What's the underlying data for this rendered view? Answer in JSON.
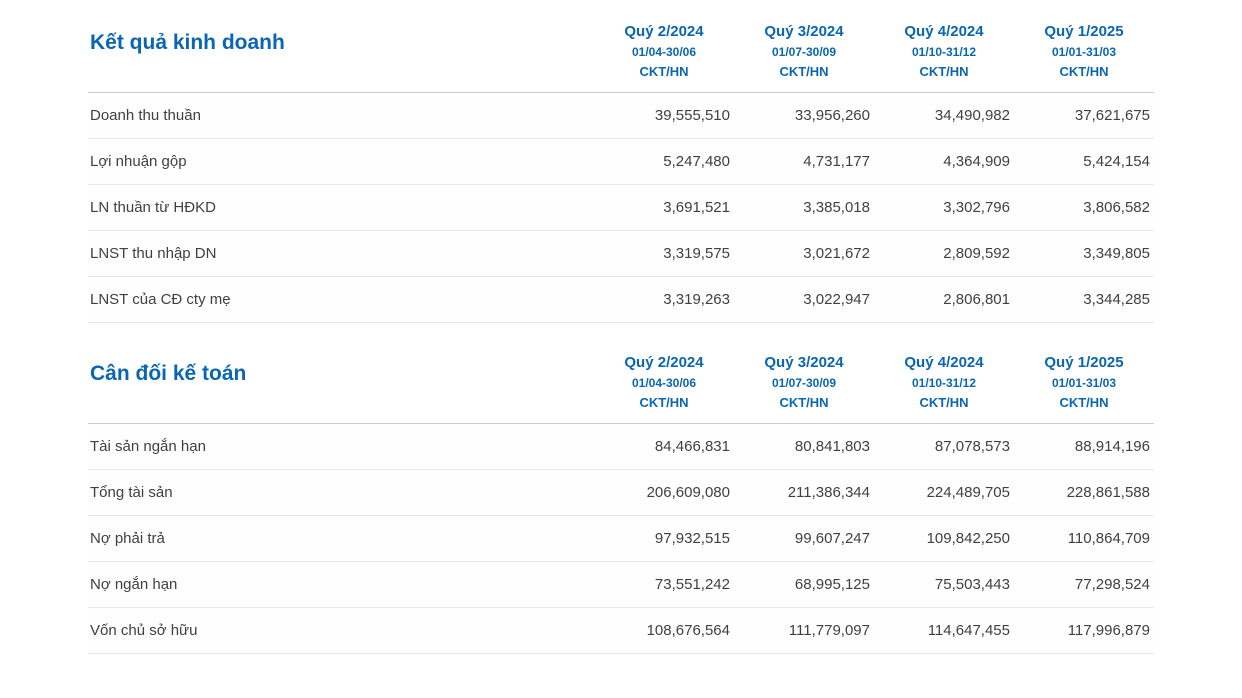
{
  "colors": {
    "accent_blue": "#0a66b2",
    "header_border": "#cccccc",
    "row_border": "#e9e9e9",
    "text": "#404040"
  },
  "sections": [
    {
      "title": "Kết quả kinh doanh",
      "columns": [
        {
          "quarter": "Quý 2/2024",
          "period": "01/04-30/06",
          "report_type": "CKT/HN"
        },
        {
          "quarter": "Quý 3/2024",
          "period": "01/07-30/09",
          "report_type": "CKT/HN"
        },
        {
          "quarter": "Quý 4/2024",
          "period": "01/10-31/12",
          "report_type": "CKT/HN"
        },
        {
          "quarter": "Quý 1/2025",
          "period": "01/01-31/03",
          "report_type": "CKT/HN"
        }
      ],
      "rows": [
        {
          "label": "Doanh thu thuần",
          "values": [
            "39,555,510",
            "33,956,260",
            "34,490,982",
            "37,621,675"
          ]
        },
        {
          "label": "Lợi nhuận gộp",
          "values": [
            "5,247,480",
            "4,731,177",
            "4,364,909",
            "5,424,154"
          ]
        },
        {
          "label": "LN thuần từ HĐKD",
          "values": [
            "3,691,521",
            "3,385,018",
            "3,302,796",
            "3,806,582"
          ]
        },
        {
          "label": "LNST thu nhập DN",
          "values": [
            "3,319,575",
            "3,021,672",
            "2,809,592",
            "3,349,805"
          ]
        },
        {
          "label": "LNST của CĐ cty mẹ",
          "values": [
            "3,319,263",
            "3,022,947",
            "2,806,801",
            "3,344,285"
          ]
        }
      ]
    },
    {
      "title": "Cân đối kế toán",
      "columns": [
        {
          "quarter": "Quý 2/2024",
          "period": "01/04-30/06",
          "report_type": "CKT/HN"
        },
        {
          "quarter": "Quý 3/2024",
          "period": "01/07-30/09",
          "report_type": "CKT/HN"
        },
        {
          "quarter": "Quý 4/2024",
          "period": "01/10-31/12",
          "report_type": "CKT/HN"
        },
        {
          "quarter": "Quý 1/2025",
          "period": "01/01-31/03",
          "report_type": "CKT/HN"
        }
      ],
      "rows": [
        {
          "label": "Tài sản ngắn hạn",
          "values": [
            "84,466,831",
            "80,841,803",
            "87,078,573",
            "88,914,196"
          ]
        },
        {
          "label": "Tổng tài sản",
          "values": [
            "206,609,080",
            "211,386,344",
            "224,489,705",
            "228,861,588"
          ]
        },
        {
          "label": "Nợ phải trả",
          "values": [
            "97,932,515",
            "99,607,247",
            "109,842,250",
            "110,864,709"
          ]
        },
        {
          "label": "Nợ ngắn hạn",
          "values": [
            "73,551,242",
            "68,995,125",
            "75,503,443",
            "77,298,524"
          ]
        },
        {
          "label": "Vốn chủ sở hữu",
          "values": [
            "108,676,564",
            "111,779,097",
            "114,647,455",
            "117,996,879"
          ]
        }
      ]
    }
  ],
  "chart_data": [
    {
      "type": "table",
      "title": "Kết quả kinh doanh",
      "columns": [
        "Quý 2/2024 (01/04-30/06) CKT/HN",
        "Quý 3/2024 (01/07-30/09) CKT/HN",
        "Quý 4/2024 (01/10-31/12) CKT/HN",
        "Quý 1/2025 (01/01-31/03) CKT/HN"
      ],
      "rows": [
        {
          "label": "Doanh thu thuần",
          "values": [
            39555510,
            33956260,
            34490982,
            37621675
          ]
        },
        {
          "label": "Lợi nhuận gộp",
          "values": [
            5247480,
            4731177,
            4364909,
            5424154
          ]
        },
        {
          "label": "LN thuần từ HĐKD",
          "values": [
            3691521,
            3385018,
            3302796,
            3806582
          ]
        },
        {
          "label": "LNST thu nhập DN",
          "values": [
            3319575,
            3021672,
            2809592,
            3349805
          ]
        },
        {
          "label": "LNST của CĐ cty mẹ",
          "values": [
            3319263,
            3022947,
            2806801,
            3344285
          ]
        }
      ]
    },
    {
      "type": "table",
      "title": "Cân đối kế toán",
      "columns": [
        "Quý 2/2024 (01/04-30/06) CKT/HN",
        "Quý 3/2024 (01/07-30/09) CKT/HN",
        "Quý 4/2024 (01/10-31/12) CKT/HN",
        "Quý 1/2025 (01/01-31/03) CKT/HN"
      ],
      "rows": [
        {
          "label": "Tài sản ngắn hạn",
          "values": [
            84466831,
            80841803,
            87078573,
            88914196
          ]
        },
        {
          "label": "Tổng tài sản",
          "values": [
            206609080,
            211386344,
            224489705,
            228861588
          ]
        },
        {
          "label": "Nợ phải trả",
          "values": [
            97932515,
            99607247,
            109842250,
            110864709
          ]
        },
        {
          "label": "Nợ ngắn hạn",
          "values": [
            73551242,
            68995125,
            75503443,
            77298524
          ]
        },
        {
          "label": "Vốn chủ sở hữu",
          "values": [
            108676564,
            111779097,
            114647455,
            117996879
          ]
        }
      ]
    }
  ]
}
